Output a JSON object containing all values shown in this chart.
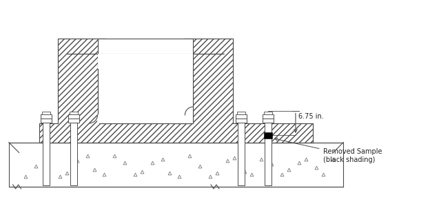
{
  "bg_color": "#ffffff",
  "line_color": "#4a4a4a",
  "hatch": "////",
  "annotation_675": "6.75 in.",
  "annotation_sample": "Removed Sample\n(black shading)",
  "lw": 0.8
}
